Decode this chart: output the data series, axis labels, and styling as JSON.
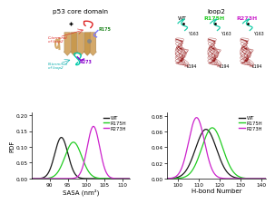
{
  "sasa_plot": {
    "wt": {
      "mean": 93.2,
      "std": 1.8,
      "amplitude": 0.13
    },
    "r175h": {
      "mean": 96.5,
      "std": 2.3,
      "amplitude": 0.115
    },
    "r273h": {
      "mean": 102.0,
      "std": 1.7,
      "amplitude": 0.165
    },
    "xlim": [
      85,
      112
    ],
    "ylim": [
      0,
      0.21
    ],
    "xticks": [
      90,
      95,
      100,
      105,
      110
    ],
    "yticks": [
      0.0,
      0.05,
      0.1,
      0.15,
      0.2
    ],
    "xlabel": "SASA (nm²)",
    "ylabel": "PDF"
  },
  "hbond_plot": {
    "wt": {
      "mean": 113.5,
      "std": 5.0,
      "amplitude": 0.063
    },
    "r175h": {
      "mean": 116.5,
      "std": 5.0,
      "amplitude": 0.065
    },
    "r273h": {
      "mean": 109.0,
      "std": 3.8,
      "amplitude": 0.078
    },
    "xlim": [
      95,
      142
    ],
    "ylim": [
      0,
      0.085
    ],
    "xticks": [
      100,
      110,
      120,
      130,
      140
    ],
    "yticks": [
      0.0,
      0.02,
      0.04,
      0.06,
      0.08
    ],
    "xlabel": "H-bond Number",
    "ylabel": ""
  },
  "colors": {
    "wt": "#1a1a1a",
    "r175h": "#22cc22",
    "r273h": "#cc22cc"
  },
  "top_labels": {
    "p53_core": "p53 core domain",
    "loop2": "loop2",
    "wt_label": "WT",
    "r175h_label": "R175H",
    "r273h_label": "R273H"
  },
  "background_color": "#ffffff",
  "fig_width": 2.66,
  "fig_height": 1.89
}
